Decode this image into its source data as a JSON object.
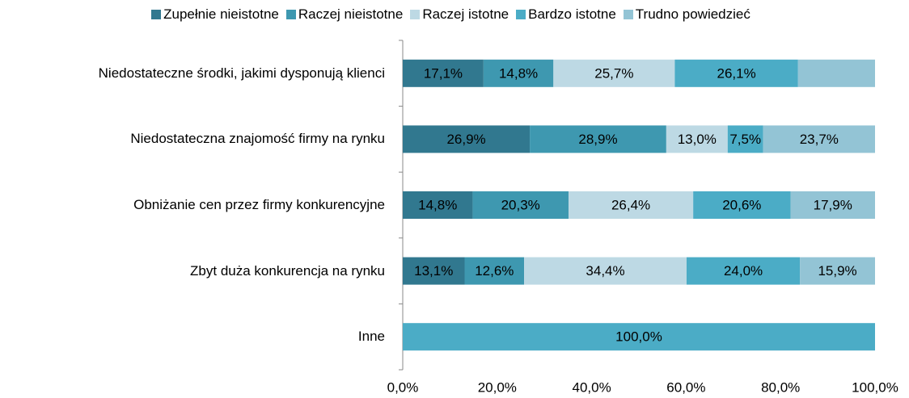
{
  "chart_data": {
    "type": "bar",
    "orientation": "horizontal",
    "stacked": true,
    "categories": [
      "Niedostateczne środki, jakimi dysponują klienci",
      "Niedostateczna znajomość firmy na rynku",
      "Obniżanie cen przez firmy konkurencyjne",
      "Zbyt duża konkurencja na rynku",
      "Inne"
    ],
    "series": [
      {
        "name": "Zupełnie nieistotne",
        "color": "#31788f",
        "values": [
          17.1,
          26.9,
          14.8,
          13.1,
          0
        ],
        "value_labels": [
          "17,1%",
          "26,9%",
          "14,8%",
          "13,1%",
          null
        ]
      },
      {
        "name": "Raczej nieistotne",
        "color": "#3e98b0",
        "values": [
          14.8,
          28.9,
          20.3,
          12.6,
          0
        ],
        "value_labels": [
          "14,8%",
          "28,9%",
          "20,3%",
          "12,6%",
          null
        ]
      },
      {
        "name": "Raczej istotne",
        "color": "#bdd9e4",
        "values": [
          25.7,
          13.0,
          26.4,
          34.4,
          0
        ],
        "value_labels": [
          "25,7%",
          "13,0%",
          "26,4%",
          "34,4%",
          null
        ]
      },
      {
        "name": "Bardzo istotne",
        "color": "#4bacc6",
        "values": [
          26.1,
          7.5,
          20.6,
          24.0,
          100
        ],
        "value_labels": [
          "26,1%",
          "7,5%",
          "20,6%",
          "24,0%",
          "100,0%"
        ]
      },
      {
        "name": "Trudno powiedzieć",
        "color": "#93c4d5",
        "values": [
          16.3,
          23.7,
          17.9,
          15.9,
          0
        ],
        "value_labels": [
          null,
          "23,7%",
          "17,9%",
          "15,9%",
          null
        ]
      }
    ],
    "xlim": [
      0,
      100
    ],
    "xticks": [
      {
        "value": 0,
        "label": "0,0%"
      },
      {
        "value": 20,
        "label": "20,0%"
      },
      {
        "value": 40,
        "label": "40,0%"
      },
      {
        "value": 60,
        "label": "60,0%"
      },
      {
        "value": 80,
        "label": "80,0%"
      },
      {
        "value": 100,
        "label": "100,0%"
      }
    ],
    "legend": "top"
  }
}
